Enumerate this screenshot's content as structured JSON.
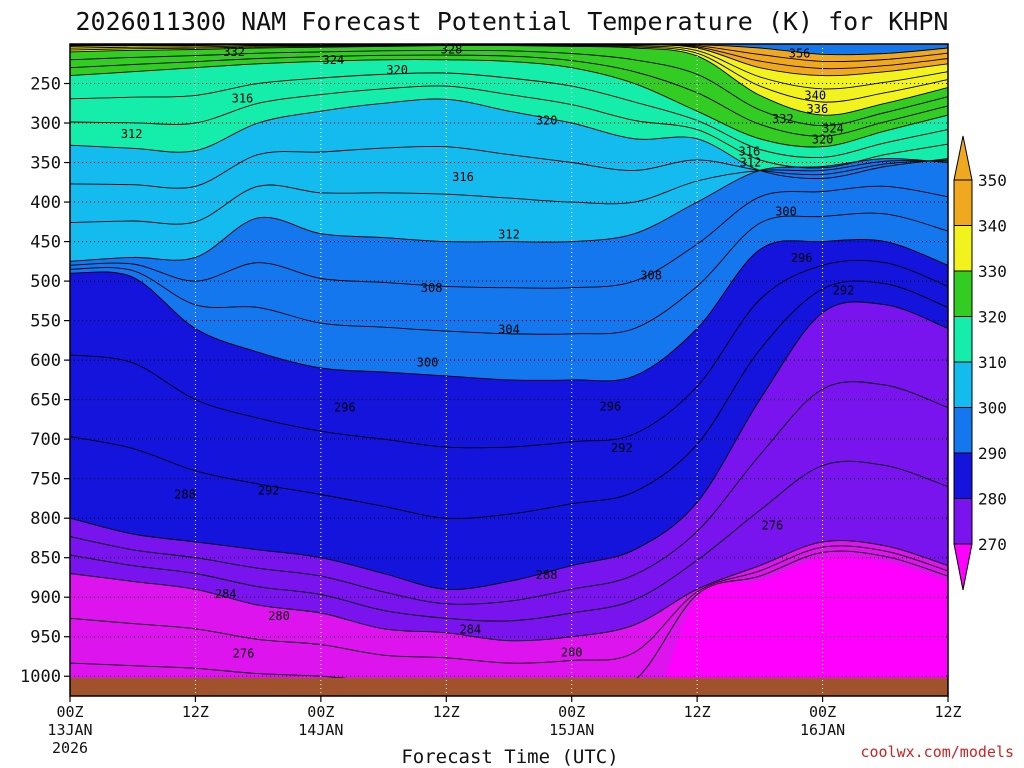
{
  "chart_data": {
    "type": "heatmap",
    "title": "2026011300 NAM Forecast Potential Temperature (K) for KHPN",
    "xlabel": "Forecast Time (UTC)",
    "ylabel": "",
    "x_ticks": [
      {
        "label": "00Z",
        "sub": "13JAN",
        "sub2": "2026",
        "hour": 0
      },
      {
        "label": "12Z",
        "sub": "",
        "sub2": "",
        "hour": 12
      },
      {
        "label": "00Z",
        "sub": "14JAN",
        "sub2": "",
        "hour": 24
      },
      {
        "label": "12Z",
        "sub": "",
        "sub2": "",
        "hour": 36
      },
      {
        "label": "00Z",
        "sub": "15JAN",
        "sub2": "",
        "hour": 48
      },
      {
        "label": "12Z",
        "sub": "",
        "sub2": "",
        "hour": 60
      },
      {
        "label": "00Z",
        "sub": "16JAN",
        "sub2": "",
        "hour": 72
      },
      {
        "label": "12Z",
        "sub": "",
        "sub2": "",
        "hour": 84
      }
    ],
    "xlim_hours": [
      0,
      84
    ],
    "y_ticks": [
      "250",
      "300",
      "350",
      "400",
      "450",
      "500",
      "550",
      "600",
      "650",
      "700",
      "750",
      "800",
      "850",
      "900",
      "950",
      "1000"
    ],
    "ylim_hPa": [
      1025,
      200
    ],
    "colorbar": {
      "levels": [
        "350",
        "340",
        "330",
        "320",
        "310",
        "300",
        "290",
        "280",
        "270"
      ],
      "colors": [
        "#f0a81e",
        "#f2f21c",
        "#33cc22",
        "#14eeaa",
        "#14bbee",
        "#1477ee",
        "#1414dd",
        "#7a14ee",
        "#dd14ee"
      ],
      "top_extend_color": "#f0a81e",
      "bottom_extend_color": "#ff00ff"
    },
    "contour_labels": [
      {
        "text": "332",
        "h": 15.7,
        "p": 210
      },
      {
        "text": "328",
        "h": 36.5,
        "p": 207
      },
      {
        "text": "324",
        "h": 25.2,
        "p": 220
      },
      {
        "text": "320",
        "h": 31.3,
        "p": 233
      },
      {
        "text": "356",
        "h": 69.8,
        "p": 212
      },
      {
        "text": "316",
        "h": 16.5,
        "p": 269
      },
      {
        "text": "312",
        "h": 5.9,
        "p": 314
      },
      {
        "text": "340",
        "h": 71.3,
        "p": 265
      },
      {
        "text": "336",
        "h": 71.5,
        "p": 282
      },
      {
        "text": "332",
        "h": 68.2,
        "p": 295
      },
      {
        "text": "320",
        "h": 45.6,
        "p": 297
      },
      {
        "text": "324",
        "h": 73.0,
        "p": 307
      },
      {
        "text": "320",
        "h": 72.0,
        "p": 321
      },
      {
        "text": "316",
        "h": 65.0,
        "p": 336
      },
      {
        "text": "312",
        "h": 65.1,
        "p": 350
      },
      {
        "text": "316",
        "h": 37.6,
        "p": 368
      },
      {
        "text": "300",
        "h": 68.5,
        "p": 412
      },
      {
        "text": "312",
        "h": 42.0,
        "p": 441
      },
      {
        "text": "296",
        "h": 70.0,
        "p": 471
      },
      {
        "text": "308",
        "h": 55.6,
        "p": 493
      },
      {
        "text": "308",
        "h": 34.6,
        "p": 509
      },
      {
        "text": "292",
        "h": 74.0,
        "p": 512
      },
      {
        "text": "304",
        "h": 42.0,
        "p": 561
      },
      {
        "text": "300",
        "h": 34.2,
        "p": 603
      },
      {
        "text": "296",
        "h": 26.3,
        "p": 660
      },
      {
        "text": "296",
        "h": 51.7,
        "p": 659
      },
      {
        "text": "292",
        "h": 52.8,
        "p": 711
      },
      {
        "text": "292",
        "h": 19.0,
        "p": 765
      },
      {
        "text": "288",
        "h": 11.0,
        "p": 770
      },
      {
        "text": "276",
        "h": 67.2,
        "p": 809
      },
      {
        "text": "288",
        "h": 45.6,
        "p": 872
      },
      {
        "text": "284",
        "h": 14.9,
        "p": 896
      },
      {
        "text": "280",
        "h": 20.0,
        "p": 924
      },
      {
        "text": "284",
        "h": 38.3,
        "p": 941
      },
      {
        "text": "276",
        "h": 16.6,
        "p": 971
      },
      {
        "text": "280",
        "h": 48.0,
        "p": 970
      }
    ]
  },
  "credit": "coolwx.com/models"
}
